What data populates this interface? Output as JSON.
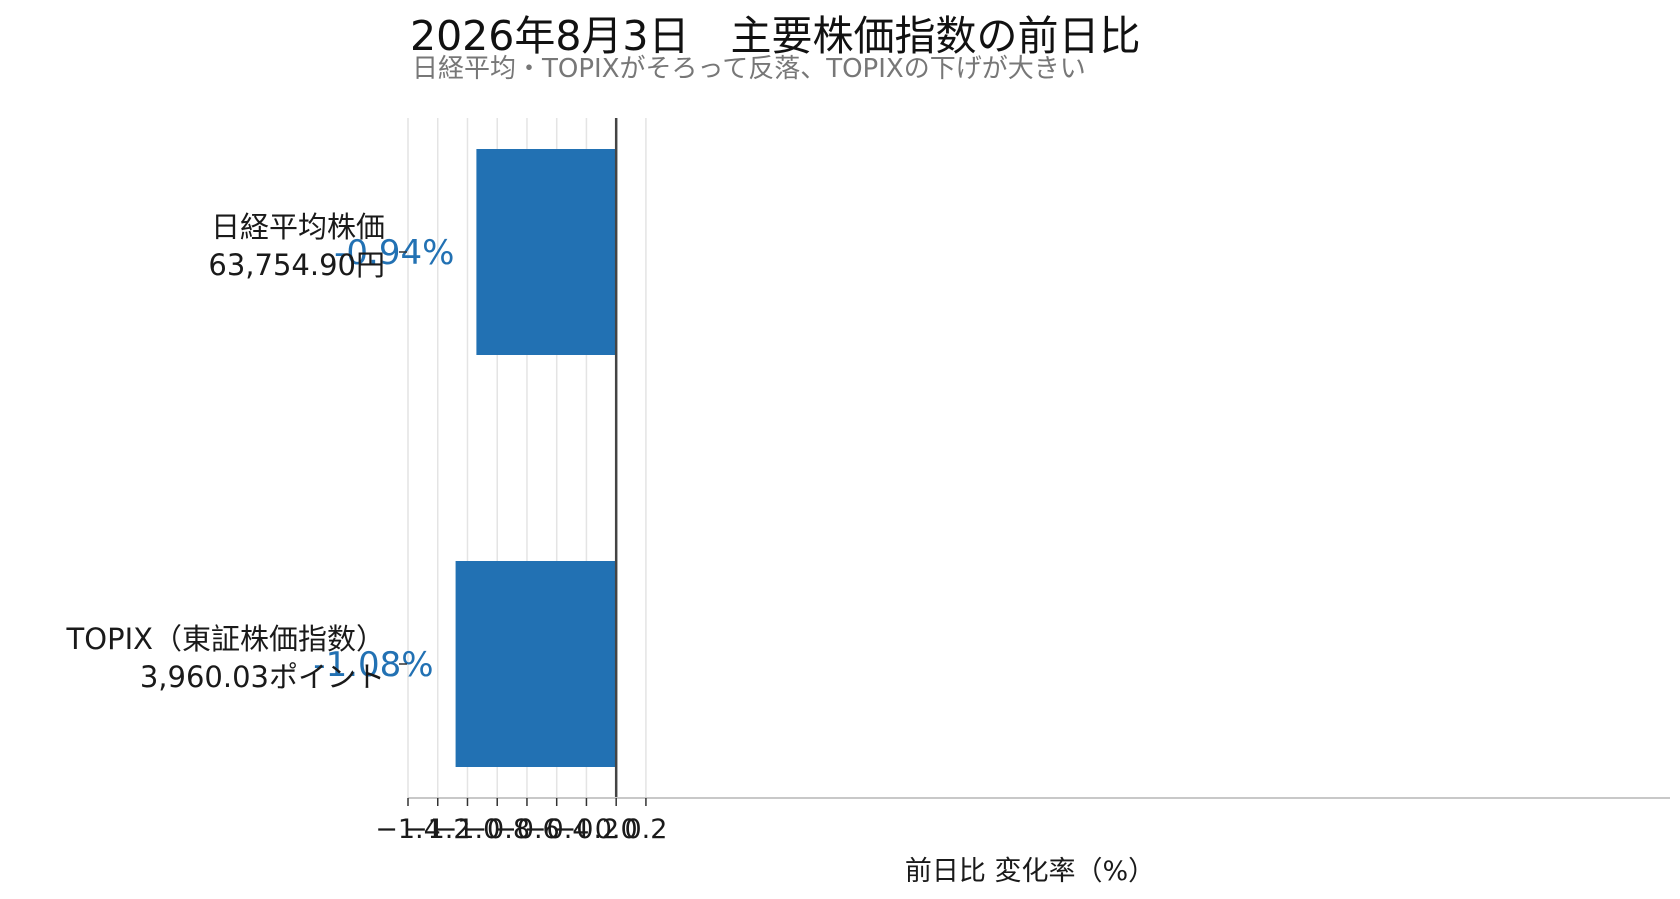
{
  "chart_data": {
    "type": "bar",
    "orientation": "horizontal",
    "title": "2026年8月3日　主要株価指数の前日比",
    "subtitle": "日経平均・TOPIXがそろって反落、TOPIXの下げが大きい",
    "categories": [
      [
        "日経平均株価",
        "63,754.90円"
      ],
      [
        "TOPIX（東証株価指数）",
        "3,960.03ポイント"
      ]
    ],
    "values": [
      -0.94,
      -1.08
    ],
    "data_labels": [
      "-0.94%",
      "-1.08%"
    ],
    "xlabel": "前日比 変化率（%）",
    "xlim": [
      -1.4,
      0.3
    ],
    "xticks": [
      -1.4,
      -1.2,
      -1.0,
      -0.8,
      -0.6,
      -0.4,
      -0.2,
      0.0,
      0.2
    ],
    "xtick_labels": [
      "−1.4",
      "−1.2",
      "−1.0",
      "−0.8",
      "−0.6",
      "−0.4",
      "−0.2",
      "0.0",
      "0.2"
    ],
    "grid": "vertical",
    "zero_line": true,
    "colors": {
      "bar": "#2271b3",
      "data_label": "#2271b3",
      "zero_line": "#444444",
      "grid": "#e4e4e4"
    }
  }
}
